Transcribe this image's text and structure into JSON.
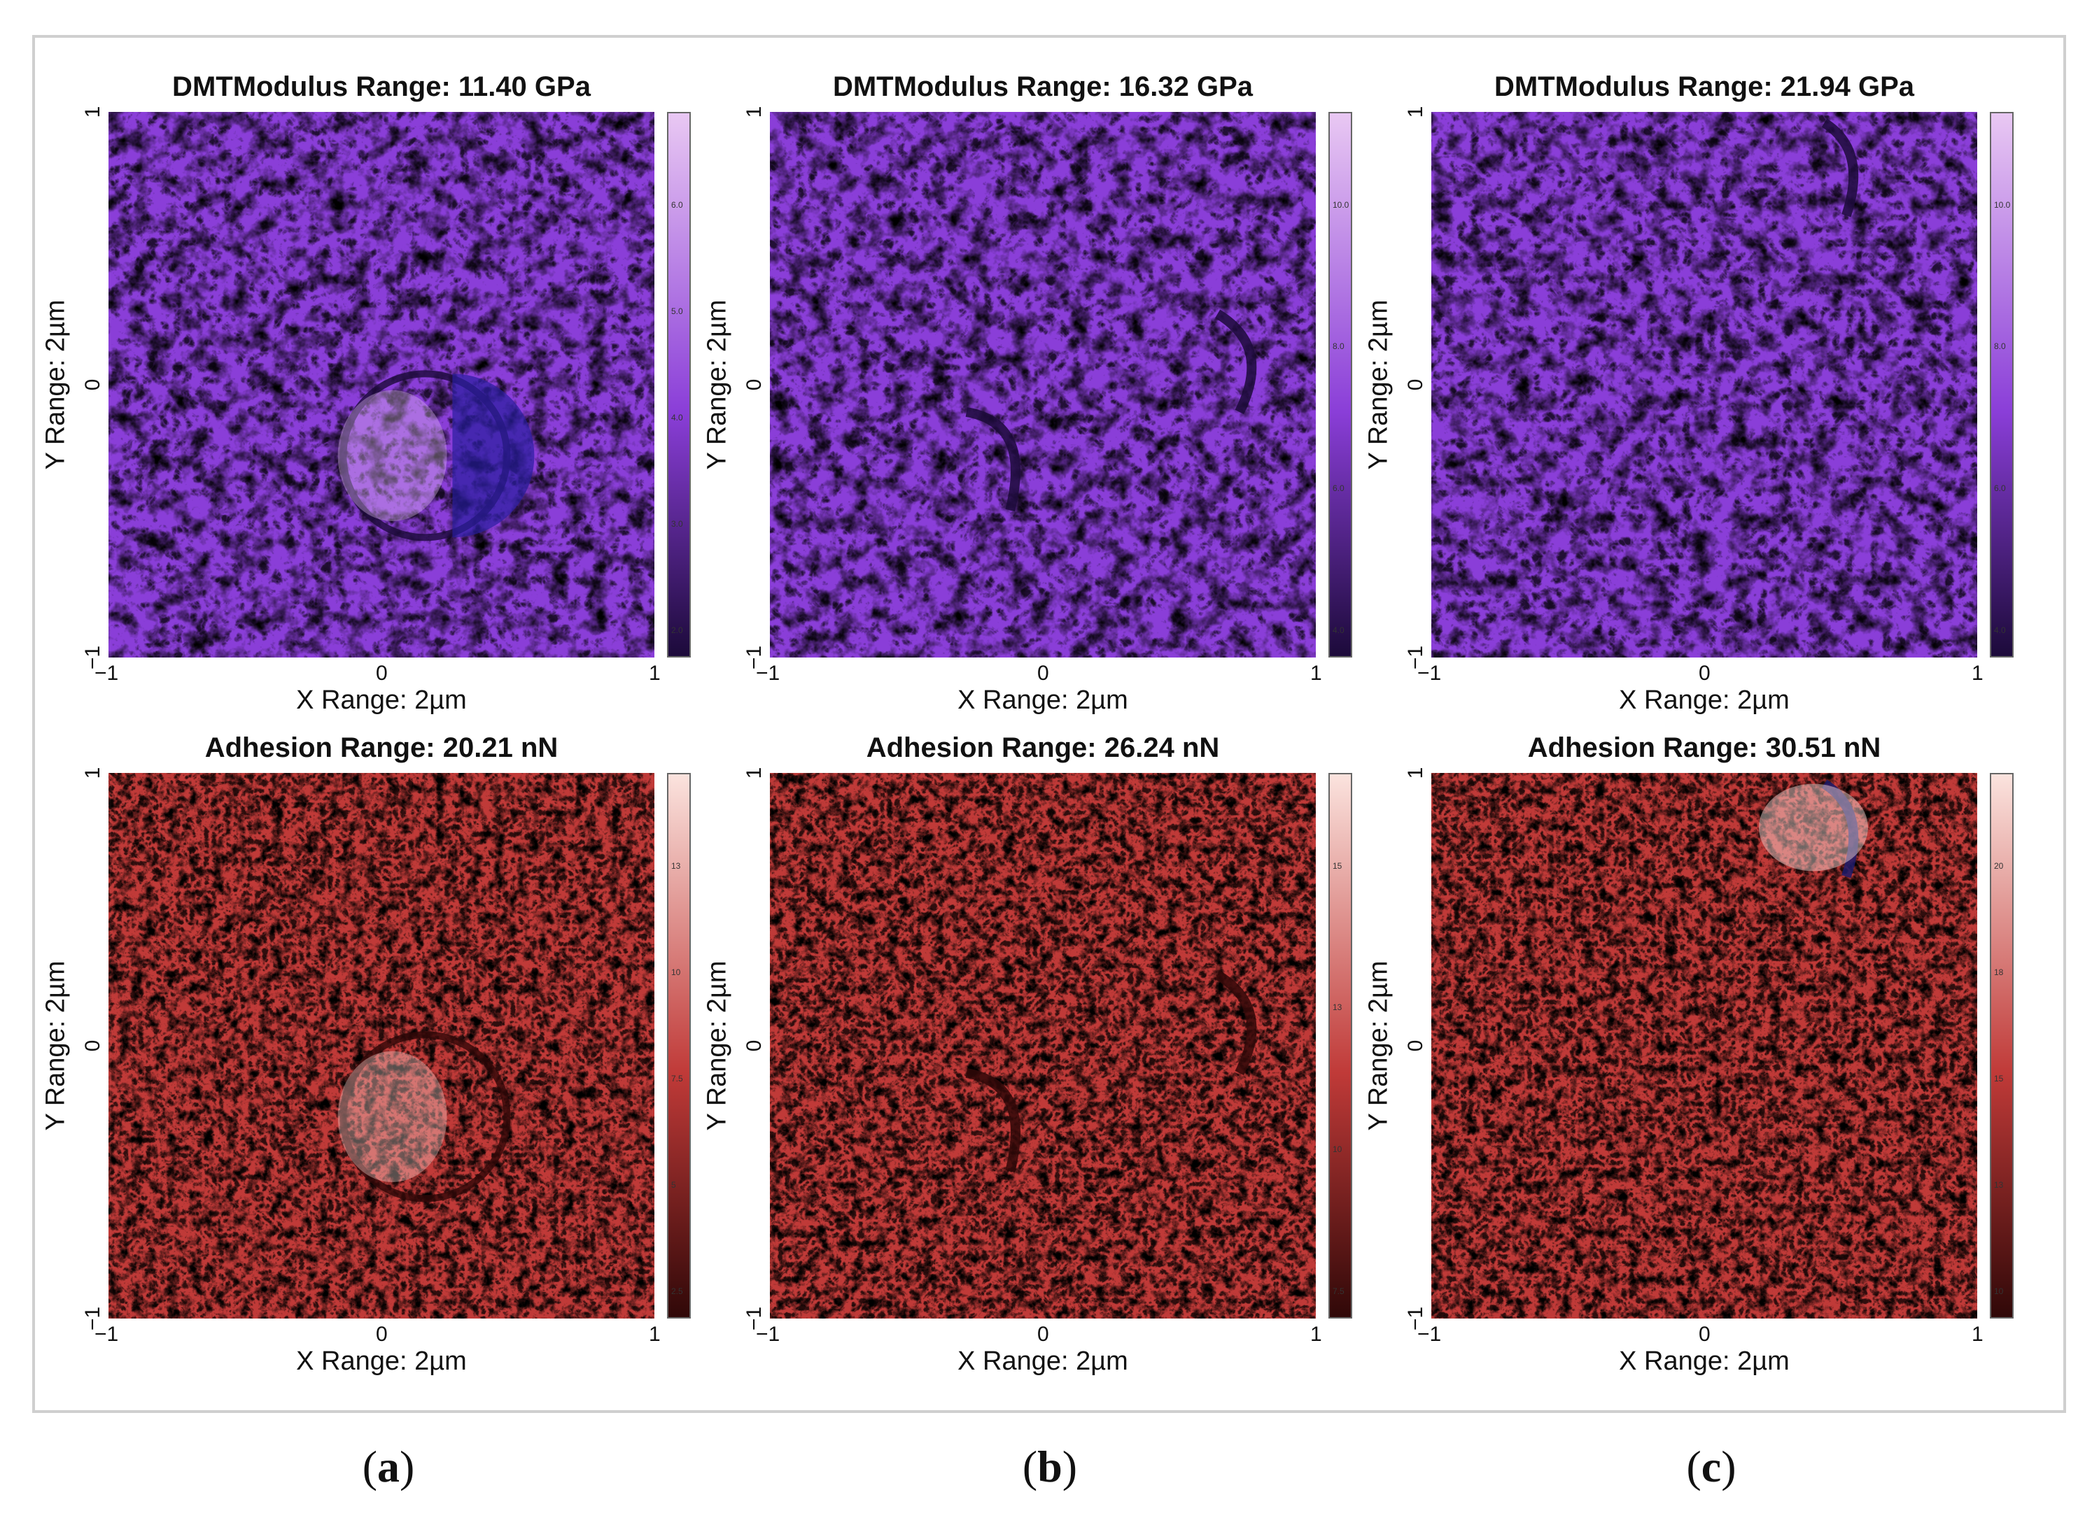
{
  "panels": [
    {
      "column": "a",
      "row": "modulus",
      "title": "DMTModulus Range: 11.40 GPa",
      "colormap": "purple",
      "colorbar_ticks": [
        "6.0",
        "5.0",
        "4.0",
        "3.0",
        "2.0"
      ]
    },
    {
      "column": "b",
      "row": "modulus",
      "title": "DMTModulus Range: 16.32 GPa",
      "colormap": "purple",
      "colorbar_ticks": [
        "10.0",
        "8.0",
        "6.0",
        "4.0"
      ]
    },
    {
      "column": "c",
      "row": "modulus",
      "title": "DMTModulus Range: 21.94 GPa",
      "colormap": "purple",
      "colorbar_ticks": [
        "10.0",
        "8.0",
        "6.0",
        "4.0"
      ]
    },
    {
      "column": "a",
      "row": "adhesion",
      "title": "Adhesion Range: 20.21 nN",
      "colormap": "red",
      "colorbar_ticks": [
        "13",
        "10",
        "7.5",
        "5",
        "2.5"
      ]
    },
    {
      "column": "b",
      "row": "adhesion",
      "title": "Adhesion Range: 26.24 nN",
      "colormap": "red",
      "colorbar_ticks": [
        "15",
        "13",
        "10",
        "7.5"
      ]
    },
    {
      "column": "c",
      "row": "adhesion",
      "title": "Adhesion Range: 30.51 nN",
      "colormap": "red",
      "colorbar_ticks": [
        "20",
        "18",
        "15",
        "13",
        "10"
      ]
    }
  ],
  "axes": {
    "xlabel": "X Range: 2µm",
    "ylabel": "Y Range: 2µm",
    "ticks": [
      "−1",
      "0",
      "1"
    ]
  },
  "subfigure_labels": [
    "a",
    "b",
    "c"
  ],
  "colors": {
    "purple_dark": "#1c0a3a",
    "purple_mid": "#8a3ed8",
    "purple_light": "#e9c8f3",
    "red_dark": "#300808",
    "red_mid": "#c03a38",
    "red_light": "#fbe3de"
  }
}
